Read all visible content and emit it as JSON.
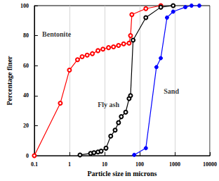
{
  "chart_data": {
    "type": "line",
    "x_label": "Particle size in microns",
    "y_label": "Percentage finer",
    "log": "x",
    "grid": true,
    "xlim": [
      0.1,
      10000
    ],
    "xticks": [
      0.1,
      1,
      10,
      100,
      1000,
      10000
    ],
    "ylim": [
      0,
      100
    ],
    "yticks": [
      0,
      20,
      40,
      60,
      80,
      100
    ],
    "series": [
      {
        "name": "Bentonite",
        "color": "#ff0000",
        "marker": "open_circle",
        "x": [
          0.1,
          0.55,
          1,
          1.7,
          2.3,
          3.2,
          4.5,
          6.5,
          9,
          13,
          18,
          25,
          35,
          50,
          55,
          60,
          150,
          400
        ],
        "values": [
          0,
          35,
          57,
          64,
          66,
          67,
          68,
          70,
          71,
          72,
          72.5,
          73.5,
          74.5,
          75,
          80,
          94,
          98,
          100
        ]
      },
      {
        "name": "Fly ash",
        "color": "#000000",
        "marker": "crossed_circle",
        "x": [
          2,
          4,
          5,
          6.5,
          8,
          11,
          15,
          20,
          25,
          30,
          40,
          50,
          55,
          65,
          150,
          400,
          900
        ],
        "values": [
          0.5,
          1.5,
          2,
          2.5,
          3,
          5,
          13,
          17,
          22,
          26,
          29,
          38,
          40,
          77,
          92,
          99,
          100
        ]
      },
      {
        "name": "Sand",
        "color": "#0000ff",
        "marker": "filled_circle",
        "x": [
          70,
          150,
          300,
          400,
          600,
          900,
          2000,
          3000,
          5000
        ],
        "values": [
          0.5,
          5,
          59,
          65,
          92,
          96,
          99,
          100,
          100
        ]
      }
    ],
    "annotations": [
      {
        "text": "Bentonite",
        "x": 0.43,
        "y": 81
      },
      {
        "text": "Fly ash",
        "x": 13,
        "y": 34
      },
      {
        "text": "Sand",
        "x": 800,
        "y": 43
      }
    ]
  }
}
